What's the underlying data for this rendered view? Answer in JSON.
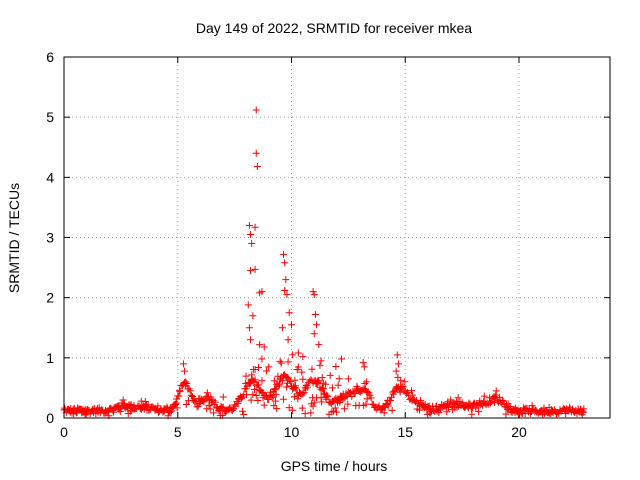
{
  "chart_data": {
    "type": "scatter",
    "title": "Day 149 of 2022, SRMTID for receiver mkea",
    "xlabel": "GPS time / hours",
    "ylabel": "SRMTID / TECUs",
    "xlim": [
      0,
      24
    ],
    "ylim": [
      0,
      6
    ],
    "xticks": [
      0,
      5,
      10,
      15,
      20
    ],
    "yticks": [
      0,
      1,
      2,
      3,
      4,
      5,
      6
    ],
    "marker": "+",
    "color": "#ff0000",
    "grid": true,
    "series": [
      {
        "name": "SRMTID",
        "peaks": [
          {
            "x": 8.15,
            "y": 3.2
          },
          {
            "x": 8.2,
            "y": 3.05
          },
          {
            "x": 8.25,
            "y": 2.9
          },
          {
            "x": 8.45,
            "y": 5.12
          },
          {
            "x": 8.45,
            "y": 4.4
          },
          {
            "x": 8.5,
            "y": 4.18
          },
          {
            "x": 8.4,
            "y": 3.17
          },
          {
            "x": 8.2,
            "y": 2.45
          },
          {
            "x": 8.4,
            "y": 2.47
          },
          {
            "x": 8.7,
            "y": 2.1
          },
          {
            "x": 8.6,
            "y": 2.08
          },
          {
            "x": 8.1,
            "y": 1.88
          },
          {
            "x": 8.3,
            "y": 1.7
          },
          {
            "x": 8.15,
            "y": 1.5
          },
          {
            "x": 8.2,
            "y": 1.3
          },
          {
            "x": 8.6,
            "y": 1.22
          },
          {
            "x": 8.8,
            "y": 1.18
          },
          {
            "x": 8.7,
            "y": 0.98
          },
          {
            "x": 9.65,
            "y": 2.72
          },
          {
            "x": 9.7,
            "y": 2.58
          },
          {
            "x": 9.75,
            "y": 2.3
          },
          {
            "x": 9.7,
            "y": 2.12
          },
          {
            "x": 9.8,
            "y": 2.05
          },
          {
            "x": 9.9,
            "y": 1.75
          },
          {
            "x": 10.0,
            "y": 1.55
          },
          {
            "x": 9.6,
            "y": 1.5
          },
          {
            "x": 9.85,
            "y": 1.3
          },
          {
            "x": 10.05,
            "y": 1.05
          },
          {
            "x": 10.3,
            "y": 1.08
          },
          {
            "x": 10.5,
            "y": 1.02
          },
          {
            "x": 10.95,
            "y": 2.1
          },
          {
            "x": 11.0,
            "y": 2.05
          },
          {
            "x": 11.05,
            "y": 1.72
          },
          {
            "x": 11.1,
            "y": 1.55
          },
          {
            "x": 11.0,
            "y": 1.4
          },
          {
            "x": 11.2,
            "y": 1.22
          },
          {
            "x": 11.3,
            "y": 0.95
          },
          {
            "x": 11.8,
            "y": 0.5
          },
          {
            "x": 12.2,
            "y": 0.98
          },
          {
            "x": 12.5,
            "y": 0.65
          },
          {
            "x": 13.15,
            "y": 0.92
          },
          {
            "x": 13.2,
            "y": 0.85
          },
          {
            "x": 13.3,
            "y": 0.6
          },
          {
            "x": 14.65,
            "y": 1.05
          },
          {
            "x": 14.7,
            "y": 0.9
          },
          {
            "x": 14.6,
            "y": 0.78
          },
          {
            "x": 14.8,
            "y": 0.62
          },
          {
            "x": 5.25,
            "y": 0.9
          },
          {
            "x": 5.3,
            "y": 0.78
          },
          {
            "x": 5.35,
            "y": 0.6
          },
          {
            "x": 6.3,
            "y": 0.42
          },
          {
            "x": 7.0,
            "y": 0.35
          },
          {
            "x": 19.0,
            "y": 0.45
          },
          {
            "x": 17.0,
            "y": 0.3
          },
          {
            "x": 2.6,
            "y": 0.3
          },
          {
            "x": 3.4,
            "y": 0.28
          }
        ]
      }
    ]
  }
}
